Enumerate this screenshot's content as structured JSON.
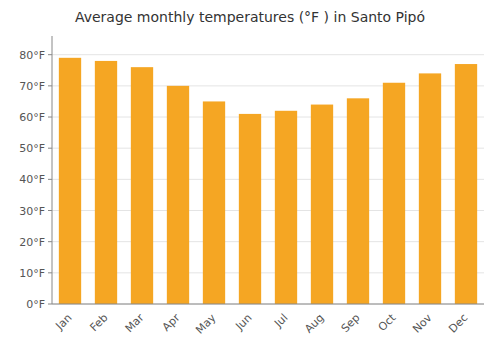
{
  "chart_data": {
    "type": "bar",
    "title": "Average monthly temperatures (°F ) in Santo Pipó",
    "categories": [
      "Jan",
      "Feb",
      "Mar",
      "Apr",
      "May",
      "Jun",
      "Jul",
      "Aug",
      "Sep",
      "Oct",
      "Nov",
      "Dec"
    ],
    "values": [
      79,
      78,
      76,
      70,
      65,
      61,
      62,
      64,
      66,
      71,
      74,
      77
    ],
    "color": "#F5A623",
    "ylim": [
      0,
      86
    ],
    "yticks": [
      {
        "value": 0,
        "label": "0°F"
      },
      {
        "value": 10,
        "label": "10°F"
      },
      {
        "value": 20,
        "label": "20°F"
      },
      {
        "value": 30,
        "label": "30°F"
      },
      {
        "value": 40,
        "label": "40°F"
      },
      {
        "value": 50,
        "label": "50°F"
      },
      {
        "value": 60,
        "label": "60°F"
      },
      {
        "value": 70,
        "label": "70°F"
      },
      {
        "value": 80,
        "label": "80°F"
      }
    ],
    "grid": true
  }
}
